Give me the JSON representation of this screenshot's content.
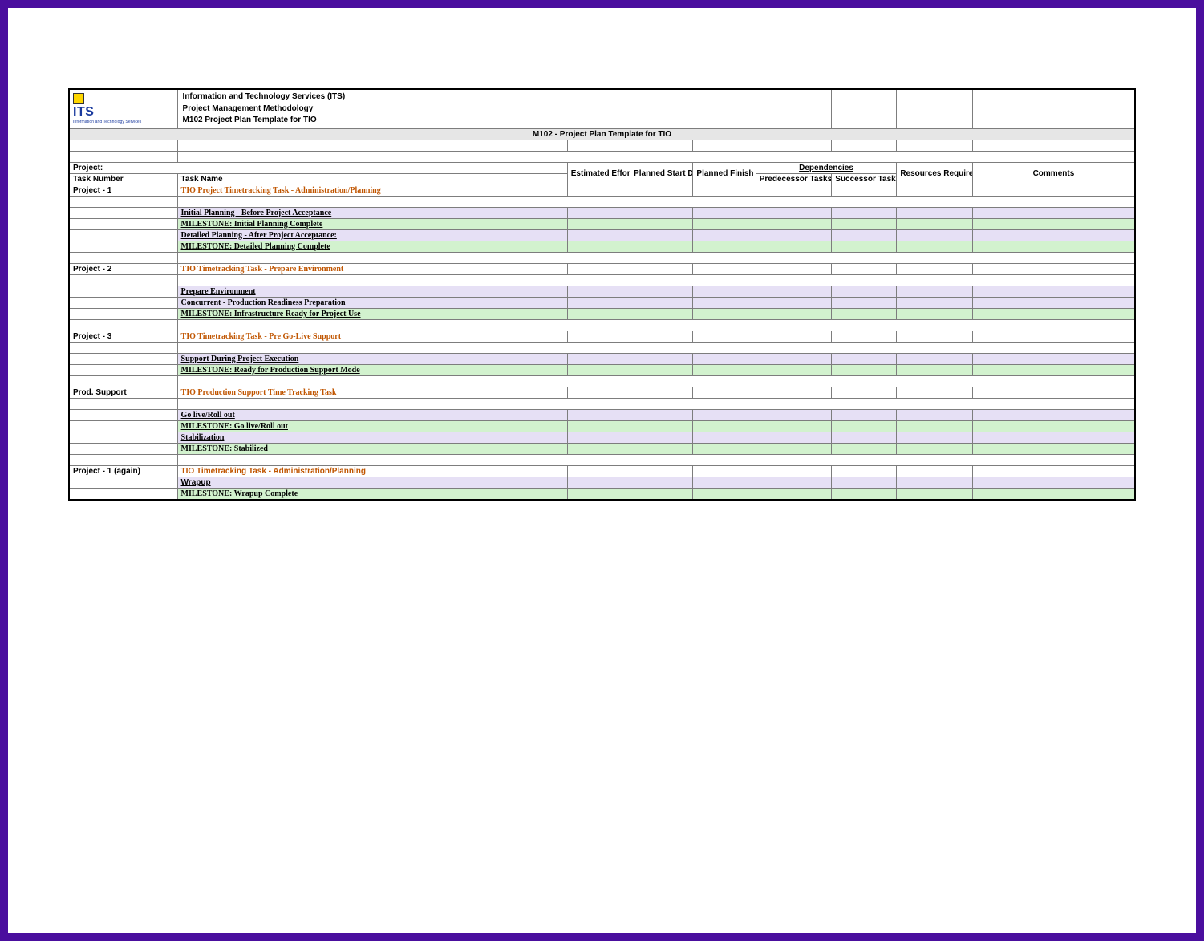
{
  "logo": {
    "text": "ITS",
    "sub": "Information and Technology Services"
  },
  "header": {
    "line1": "Information and Technology Services (ITS)",
    "line2": "Project Management Methodology",
    "line3": "M102 Project Plan Template for TIO"
  },
  "title": "M102 - Project Plan Template for TIO",
  "labels": {
    "project": "Project:",
    "task_number": "Task Number",
    "task_name": "Task Name",
    "effort": "Estimated Effort (hours)",
    "start": "Planned Start Date",
    "finish": "Planned Finish Date",
    "dependencies": "Dependencies",
    "predecessor": "Predecessor Tasks",
    "successor": "Successor Tasks",
    "resources": "Resources Required/ Responsible Parties",
    "comments": "Comments"
  },
  "rows": [
    {
      "num": "Project - 1",
      "name": "TIO Project Timetracking Task - Administration/Planning",
      "style": "section-hdr"
    },
    {
      "spacer": true
    },
    {
      "name": "Initial Planning - Before Project Acceptance",
      "style": "subtask",
      "bg": "lav"
    },
    {
      "name": "MILESTONE: Initial Planning Complete",
      "style": "subtask",
      "bg": "grn"
    },
    {
      "name": "Detailed Planning - After Project Acceptance:",
      "style": "subtask",
      "bg": "lav"
    },
    {
      "name": "MILESTONE: Detailed Planning Complete",
      "style": "subtask",
      "bg": "grn"
    },
    {
      "spacer": true
    },
    {
      "num": "Project - 2",
      "name": "TIO Timetracking Task - Prepare Environment",
      "style": "section-hdr"
    },
    {
      "spacer": true
    },
    {
      "name": "Prepare Environment",
      "style": "subtask",
      "bg": "lav"
    },
    {
      "name": "Concurrent - Production Readiness Preparation",
      "style": "subtask",
      "bg": "lav"
    },
    {
      "name": "MILESTONE: Infrastructure Ready for Project Use",
      "style": "subtask",
      "bg": "grn"
    },
    {
      "spacer": true
    },
    {
      "num": "Project - 3",
      "name": "TIO Timetracking Task - Pre Go-Live Support",
      "style": "section-hdr"
    },
    {
      "spacer": true
    },
    {
      "name": "Support During Project Execution",
      "style": "subtask",
      "bg": "lav"
    },
    {
      "name": "MILESTONE: Ready for Production Support Mode",
      "style": "subtask",
      "bg": "grn"
    },
    {
      "spacer": true
    },
    {
      "num": "Prod. Support",
      "name": "TIO Production Support Time Tracking Task",
      "style": "section-hdr"
    },
    {
      "spacer": true
    },
    {
      "name": "Go live/Roll out",
      "style": "subtask",
      "bg": "lav"
    },
    {
      "name": "MILESTONE: Go live/Roll out",
      "style": "subtask",
      "bg": "grn"
    },
    {
      "name": "Stabilization",
      "style": "subtask",
      "bg": "lav"
    },
    {
      "name": "MILESTONE: Stabilized",
      "style": "subtask",
      "bg": "grn"
    },
    {
      "spacer": true
    },
    {
      "num": "Project - 1 (again)",
      "name": "TIO Timetracking Task - Administration/Planning",
      "style": "section-hdr-plain"
    },
    {
      "name": "Wrapup",
      "style": "subtask-plain",
      "bg": "lav"
    },
    {
      "name": "MILESTONE: Wrapup Complete",
      "style": "subtask",
      "bg": "grn"
    }
  ],
  "colwidths": {
    "c0": "100",
    "c1": "360",
    "c2": "58",
    "c3": "58",
    "c4": "58",
    "c5": "70",
    "c6": "60",
    "c7": "70",
    "c8": "150"
  },
  "colors": {
    "border_frame": "#4a0e9e",
    "section_color": "#c05500",
    "lav": "#e6e0f5",
    "grn": "#d2f2ce",
    "title_bg": "#e6e6e6"
  }
}
